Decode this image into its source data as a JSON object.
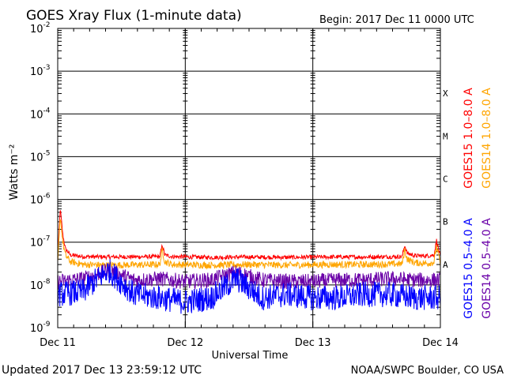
{
  "chart_data": {
    "type": "line",
    "title": "GOES Xray Flux (1-minute data)",
    "begin_label": "Begin:  2017 Dec 11 0000 UTC",
    "xlabel": "Universal Time",
    "ylabel": "Watts m⁻²",
    "y_scale": "log",
    "ylim": [
      1e-09,
      0.01
    ],
    "y_ticks": [
      {
        "value": 0.01,
        "base": "10",
        "exp": "-2"
      },
      {
        "value": 0.001,
        "base": "10",
        "exp": "-3"
      },
      {
        "value": 0.0001,
        "base": "10",
        "exp": "-4"
      },
      {
        "value": 1e-05,
        "base": "10",
        "exp": "-5"
      },
      {
        "value": 1e-06,
        "base": "10",
        "exp": "-6"
      },
      {
        "value": 1e-07,
        "base": "10",
        "exp": "-7"
      },
      {
        "value": 1e-08,
        "base": "10",
        "exp": "-8"
      },
      {
        "value": 1e-09,
        "base": "10",
        "exp": "-9"
      }
    ],
    "x_ticks": [
      {
        "day": 0,
        "label": "Dec 11"
      },
      {
        "day": 1,
        "label": "Dec 12"
      },
      {
        "day": 2,
        "label": "Dec 13"
      },
      {
        "day": 3,
        "label": "Dec 14"
      }
    ],
    "xlim_days": [
      0,
      3
    ],
    "flare_classes": [
      {
        "label": "X",
        "value": 0.0001
      },
      {
        "label": "M",
        "value": 1e-05
      },
      {
        "label": "C",
        "value": 1e-06
      },
      {
        "label": "B",
        "value": 1e-07
      },
      {
        "label": "A",
        "value": 1e-08
      }
    ],
    "series": [
      {
        "name": "GOES15 1.0–8.0 A",
        "color": "#ff0000",
        "x": [
          0,
          0.02,
          0.04,
          0.06,
          0.1,
          0.2,
          0.4,
          0.8,
          0.82,
          0.84,
          0.9,
          1.2,
          1.5,
          1.8,
          2.1,
          2.4,
          2.7,
          2.72,
          2.74,
          2.8,
          2.9,
          2.95,
          2.97,
          3.0
        ],
        "values": [
          4.5e-08,
          6e-07,
          1.5e-07,
          7e-08,
          5e-08,
          4.6e-08,
          4.5e-08,
          4.6e-08,
          8.5e-08,
          5e-08,
          4.6e-08,
          4.4e-08,
          4.5e-08,
          4.4e-08,
          4.5e-08,
          4.5e-08,
          4.6e-08,
          8.5e-08,
          5.5e-08,
          4.8e-08,
          4.8e-08,
          5e-08,
          1.1e-07,
          4.5e-08
        ]
      },
      {
        "name": "GOES14 1.0–8.0 A",
        "color": "#ffa500",
        "x": [
          0,
          0.02,
          0.04,
          0.06,
          0.1,
          0.2,
          0.4,
          0.8,
          0.82,
          0.84,
          0.9,
          1.2,
          1.5,
          1.8,
          2.1,
          2.4,
          2.7,
          2.72,
          2.74,
          2.8,
          2.9,
          2.95,
          2.97,
          3.0
        ],
        "values": [
          3e-08,
          4e-07,
          1e-07,
          5e-08,
          3.5e-08,
          3e-08,
          2.9e-08,
          3e-08,
          6.5e-08,
          3.5e-08,
          3e-08,
          2.9e-08,
          3e-08,
          2.9e-08,
          3e-08,
          3e-08,
          3.1e-08,
          6.5e-08,
          4e-08,
          3.3e-08,
          3.2e-08,
          3.4e-08,
          8e-08,
          3e-08
        ]
      },
      {
        "name": "GOES14 0.5–4.0 A",
        "color": "#6a00a8",
        "x": [
          0,
          0.2,
          0.4,
          0.6,
          0.8,
          1.0,
          1.2,
          1.4,
          1.6,
          1.8,
          2.0,
          2.2,
          2.4,
          2.6,
          2.8,
          3.0
        ],
        "values": [
          1.2e-08,
          1.4e-08,
          2.2e-08,
          1.3e-08,
          1.4e-08,
          1.2e-08,
          1.3e-08,
          2e-08,
          1.3e-08,
          1.2e-08,
          1.2e-08,
          1.3e-08,
          1.3e-08,
          1.4e-08,
          1.3e-08,
          1.3e-08
        ]
      },
      {
        "name": "GOES15 0.5–4.0 A",
        "color": "#0000ff",
        "x": [
          0,
          0.2,
          0.3,
          0.4,
          0.6,
          0.8,
          1.0,
          1.2,
          1.4,
          1.6,
          1.8,
          2.0,
          2.2,
          2.4,
          2.6,
          2.8,
          3.0
        ],
        "values": [
          6e-09,
          7e-09,
          1.3e-08,
          2.2e-08,
          6e-09,
          5e-09,
          4e-09,
          5e-09,
          1.4e-08,
          5e-09,
          6e-09,
          5e-09,
          5e-09,
          6e-09,
          6e-09,
          5e-09,
          5e-09
        ]
      }
    ]
  },
  "footer": {
    "updated": "Updated 2017 Dec 13 23:59:12 UTC",
    "credit": "NOAA/SWPC Boulder, CO USA"
  },
  "colors": {
    "background": "#ffffff",
    "axes": "#000000"
  }
}
